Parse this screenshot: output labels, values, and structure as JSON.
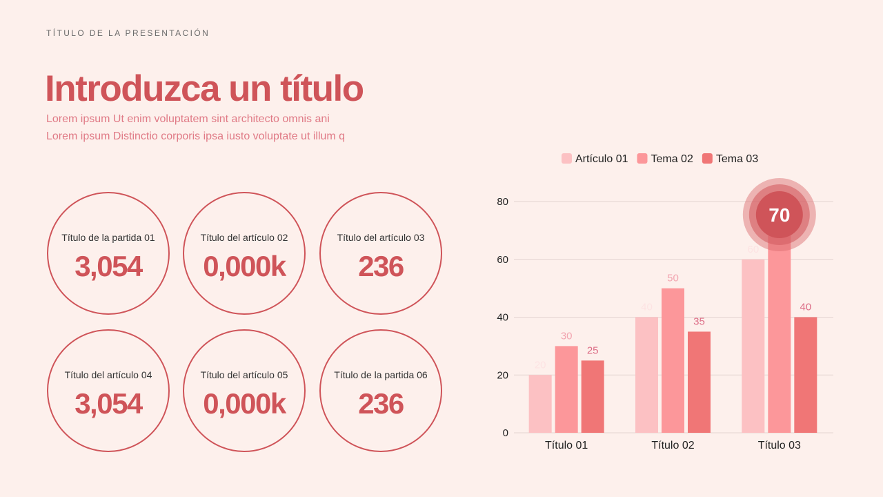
{
  "header": {
    "kicker": "TÍTULO DE LA PRESENTACIÓN",
    "title": "Introduzca un título",
    "subtitle_lines": [
      "Lorem ipsum Ut enim voluptatem sint architecto omnis ani",
      "Lorem ipsum Distinctio corporis ipsa iusto voluptate ut illum q"
    ]
  },
  "kpis": [
    {
      "label": "Título de la partida 01",
      "value": "3,054"
    },
    {
      "label": "Título del artículo 02",
      "value": "0,000k"
    },
    {
      "label": "Título del artículo 03",
      "value": "236"
    },
    {
      "label": "Título del artículo 04",
      "value": "3,054"
    },
    {
      "label": "Título del artículo 05",
      "value": "0,000k"
    },
    {
      "label": "Título de la partida 06",
      "value": "236"
    }
  ],
  "colors": {
    "accent": "#cf5459",
    "background": "#fdf0ec"
  },
  "chart_data": {
    "type": "bar",
    "categories": [
      "Título 01",
      "Título 02",
      "Título 03"
    ],
    "series": [
      {
        "name": "Artículo 01",
        "values": [
          20,
          40,
          60
        ],
        "color": "#fcc1c3",
        "label_color": "#fde3e3"
      },
      {
        "name": "Tema 02",
        "values": [
          30,
          50,
          70
        ],
        "color": "#fc979a",
        "label_color": "#f2a5b0"
      },
      {
        "name": "Tema 03",
        "values": [
          25,
          35,
          40
        ],
        "color": "#f07676",
        "label_color": "#dc6b85"
      }
    ],
    "ylim": [
      0,
      80
    ],
    "yticks": [
      0,
      20,
      40,
      60,
      80
    ],
    "grid": true,
    "legend": "top",
    "highlight": {
      "series": 1,
      "category": 2,
      "label": "70"
    }
  }
}
